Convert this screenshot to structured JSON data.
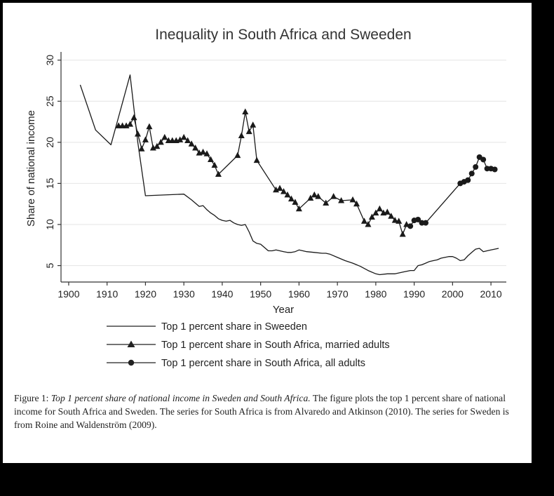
{
  "chart_data": {
    "type": "line",
    "title": "Inequality in South Africa and Sweeden",
    "xlabel": "Year",
    "ylabel": "Share of national income",
    "xlim": [
      1898,
      2014
    ],
    "ylim": [
      3,
      31
    ],
    "xticks": [
      1900,
      1910,
      1920,
      1930,
      1940,
      1950,
      1960,
      1970,
      1980,
      1990,
      2000,
      2010
    ],
    "yticks": [
      5,
      10,
      15,
      20,
      25,
      30
    ],
    "grid": "horizontal",
    "legend_position": "below",
    "series": [
      {
        "name": "Top 1 percent share in Sweeden",
        "marker": "none",
        "points": [
          [
            1903,
            27
          ],
          [
            1907,
            21.5
          ],
          [
            1911,
            19.7
          ],
          [
            1916,
            28.2
          ],
          [
            1918,
            20
          ],
          [
            1920,
            13.5
          ],
          [
            1930,
            13.7
          ],
          [
            1932,
            13
          ],
          [
            1934,
            12.2
          ],
          [
            1935,
            12.3
          ],
          [
            1936,
            11.8
          ],
          [
            1937,
            11.4
          ],
          [
            1938,
            11.1
          ],
          [
            1939,
            10.7
          ],
          [
            1940,
            10.5
          ],
          [
            1941,
            10.4
          ],
          [
            1942,
            10.5
          ],
          [
            1943,
            10.2
          ],
          [
            1944,
            10
          ],
          [
            1945,
            9.9
          ],
          [
            1946,
            10
          ],
          [
            1947,
            9.1
          ],
          [
            1948,
            8
          ],
          [
            1949,
            7.7
          ],
          [
            1950,
            7.6
          ],
          [
            1951,
            7.2
          ],
          [
            1952,
            6.8
          ],
          [
            1953,
            6.8
          ],
          [
            1954,
            6.9
          ],
          [
            1955,
            6.8
          ],
          [
            1956,
            6.7
          ],
          [
            1957,
            6.6
          ],
          [
            1958,
            6.6
          ],
          [
            1959,
            6.7
          ],
          [
            1960,
            6.9
          ],
          [
            1962,
            6.7
          ],
          [
            1964,
            6.6
          ],
          [
            1966,
            6.5
          ],
          [
            1967,
            6.5
          ],
          [
            1968,
            6.4
          ],
          [
            1970,
            6.0
          ],
          [
            1972,
            5.6
          ],
          [
            1974,
            5.3
          ],
          [
            1976,
            4.9
          ],
          [
            1978,
            4.4
          ],
          [
            1980,
            4.0
          ],
          [
            1981,
            3.9
          ],
          [
            1983,
            4.0
          ],
          [
            1985,
            4.0
          ],
          [
            1987,
            4.2
          ],
          [
            1989,
            4.4
          ],
          [
            1990,
            4.4
          ],
          [
            1991,
            5.0
          ],
          [
            1992,
            5.1
          ],
          [
            1993,
            5.3
          ],
          [
            1994,
            5.5
          ],
          [
            1995,
            5.6
          ],
          [
            1996,
            5.7
          ],
          [
            1997,
            5.9
          ],
          [
            1998,
            6.0
          ],
          [
            1999,
            6.1
          ],
          [
            2000,
            6.1
          ],
          [
            2001,
            5.9
          ],
          [
            2002,
            5.6
          ],
          [
            2003,
            5.7
          ],
          [
            2004,
            6.2
          ],
          [
            2005,
            6.6
          ],
          [
            2006,
            7.0
          ],
          [
            2007,
            7.1
          ],
          [
            2008,
            6.7
          ],
          [
            2009,
            6.8
          ],
          [
            2010,
            6.9
          ],
          [
            2011,
            7.0
          ],
          [
            2012,
            7.1
          ]
        ]
      },
      {
        "name": "Top 1 percent share in South Africa, married adults",
        "marker": "triangle",
        "points": [
          [
            1913,
            22
          ],
          [
            1914,
            22
          ],
          [
            1915,
            22
          ],
          [
            1916,
            22.2
          ],
          [
            1917,
            23
          ],
          [
            1918,
            21
          ],
          [
            1919,
            19.2
          ],
          [
            1920,
            20.3
          ],
          [
            1921,
            21.9
          ],
          [
            1922,
            19.3
          ],
          [
            1923,
            19.5
          ],
          [
            1924,
            20
          ],
          [
            1925,
            20.6
          ],
          [
            1926,
            20.2
          ],
          [
            1927,
            20.2
          ],
          [
            1928,
            20.2
          ],
          [
            1929,
            20.3
          ],
          [
            1930,
            20.6
          ],
          [
            1931,
            20.2
          ],
          [
            1932,
            19.8
          ],
          [
            1933,
            19.3
          ],
          [
            1934,
            18.7
          ],
          [
            1935,
            18.8
          ],
          [
            1936,
            18.6
          ],
          [
            1937,
            17.9
          ],
          [
            1938,
            17.2
          ],
          [
            1939,
            16.1
          ],
          [
            1944,
            18.4
          ],
          [
            1945,
            20.8
          ],
          [
            1946,
            23.7
          ],
          [
            1947,
            21.3
          ],
          [
            1948,
            22.1
          ],
          [
            1949,
            17.8
          ],
          [
            1954,
            14.2
          ],
          [
            1955,
            14.4
          ],
          [
            1956,
            14.0
          ],
          [
            1957,
            13.6
          ],
          [
            1958,
            13.1
          ],
          [
            1959,
            12.7
          ],
          [
            1960,
            11.9
          ],
          [
            1963,
            13.2
          ],
          [
            1964,
            13.6
          ],
          [
            1965,
            13.4
          ],
          [
            1967,
            12.6
          ],
          [
            1969,
            13.4
          ],
          [
            1971,
            12.9
          ],
          [
            1974,
            13.0
          ],
          [
            1975,
            12.5
          ],
          [
            1977,
            10.4
          ],
          [
            1978,
            10.0
          ],
          [
            1979,
            10.9
          ],
          [
            1980,
            11.4
          ],
          [
            1981,
            11.9
          ],
          [
            1982,
            11.4
          ],
          [
            1983,
            11.5
          ],
          [
            1984,
            11.0
          ],
          [
            1985,
            10.5
          ],
          [
            1986,
            10.4
          ],
          [
            1987,
            8.8
          ],
          [
            1988,
            10.0
          ]
        ]
      },
      {
        "name": "Top 1 percent share in South Africa, all adults",
        "marker": "circle",
        "points": [
          [
            1989,
            9.8
          ],
          [
            1990,
            10.5
          ],
          [
            1991,
            10.6
          ],
          [
            1992,
            10.2
          ],
          [
            1993,
            10.2
          ],
          [
            2002,
            15.0
          ],
          [
            2003,
            15.2
          ],
          [
            2004,
            15.4
          ],
          [
            2005,
            16.2
          ],
          [
            2006,
            17.0
          ],
          [
            2007,
            18.2
          ],
          [
            2008,
            17.9
          ],
          [
            2009,
            16.8
          ],
          [
            2010,
            16.8
          ],
          [
            2011,
            16.7
          ]
        ]
      }
    ]
  },
  "caption": {
    "label": "Figure 1:",
    "title": "Top 1 percent share of national income in Sweden and South Africa.",
    "body": "The figure plots the top 1 percent share of national income for South Africa and Sweden. The series for South Africa is from Alvaredo and Atkinson (2010). The series for Sweden is from Roine and Waldenström (2009)."
  }
}
